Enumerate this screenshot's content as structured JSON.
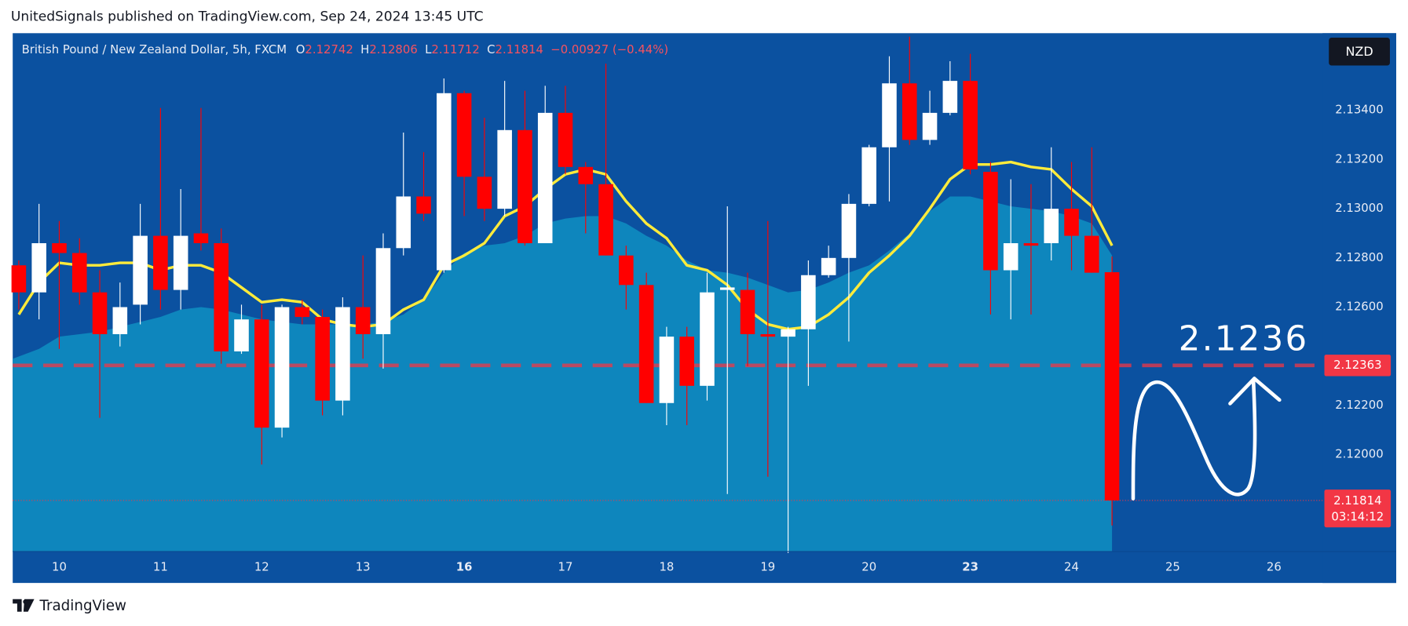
{
  "header": "UnitedSignals published on TradingView.com, Sep 24, 2024 13:45 UTC",
  "footer": "TradingView",
  "chart_data": {
    "type": "candlestick",
    "title": "British Pound / New Zealand Dollar, 5h, FXCM",
    "ohlc_letters": [
      "O",
      "H",
      "L",
      "C"
    ],
    "change": "−0.00927 (−0.44%)",
    "currency": "NZD",
    "up_color": "#ffffff",
    "down_color": "#ff0000",
    "open": [
      2.1277,
      2.1266,
      2.1286,
      2.1282,
      2.1266,
      2.1249,
      2.1261,
      2.1289,
      2.1267,
      2.129,
      2.1286,
      2.1242,
      2.1255,
      2.1211,
      2.126,
      2.1256,
      2.1222,
      2.126,
      2.1249,
      2.1284,
      2.1305,
      2.1275,
      2.1347,
      2.1313,
      2.13,
      2.1332,
      2.1286,
      2.1339,
      2.1317,
      2.131,
      2.1281,
      2.1269,
      2.1221,
      2.1248,
      2.1228,
      2.1267,
      2.1267,
      2.1249,
      2.1248,
      2.1251,
      2.1273,
      2.128,
      2.1302,
      2.1325,
      2.1351,
      2.1328,
      2.1339,
      2.1352,
      2.1315,
      2.1275,
      2.1286,
      2.1286,
      2.13,
      2.1289,
      2.12742
    ],
    "high": [
      2.1279,
      2.1302,
      2.1295,
      2.1288,
      2.1275,
      2.127,
      2.1302,
      2.1341,
      2.1308,
      2.1341,
      2.1292,
      2.1261,
      2.1261,
      2.1261,
      2.1263,
      2.1259,
      2.1264,
      2.1281,
      2.129,
      2.1331,
      2.1323,
      2.1353,
      2.1348,
      2.1337,
      2.1352,
      2.1348,
      2.135,
      2.135,
      2.1319,
      2.1359,
      2.1285,
      2.1274,
      2.1252,
      2.1252,
      2.1274,
      2.1301,
      2.1274,
      2.1295,
      2.1252,
      2.1279,
      2.1285,
      2.1306,
      2.1326,
      2.1362,
      2.137,
      2.1348,
      2.136,
      2.1363,
      2.1319,
      2.1312,
      2.131,
      2.1325,
      2.1319,
      2.1325,
      2.12806
    ],
    "low": [
      2.1259,
      2.1255,
      2.1243,
      2.1261,
      2.1215,
      2.1244,
      2.1253,
      2.1259,
      2.1259,
      2.1283,
      2.1237,
      2.1241,
      2.1196,
      2.1207,
      2.1253,
      2.1216,
      2.1216,
      2.1239,
      2.1235,
      2.1281,
      2.1295,
      2.1274,
      2.1297,
      2.1295,
      2.1297,
      2.1285,
      2.1286,
      2.1314,
      2.129,
      2.1281,
      2.1259,
      2.1221,
      2.1212,
      2.1212,
      2.1222,
      2.1184,
      2.1236,
      2.1191,
      2.116,
      2.1228,
      2.1272,
      2.1246,
      2.1301,
      2.1303,
      2.1326,
      2.1326,
      2.1338,
      2.1314,
      2.1257,
      2.1255,
      2.1257,
      2.1279,
      2.1275,
      2.1274,
      2.11712
    ],
    "close": [
      2.1266,
      2.1286,
      2.1282,
      2.1266,
      2.1249,
      2.126,
      2.1289,
      2.1267,
      2.1289,
      2.1286,
      2.1242,
      2.1255,
      2.1211,
      2.126,
      2.1256,
      2.1222,
      2.126,
      2.1249,
      2.1284,
      2.1305,
      2.1298,
      2.1347,
      2.1313,
      2.13,
      2.1332,
      2.1286,
      2.1339,
      2.1317,
      2.131,
      2.1281,
      2.1269,
      2.1221,
      2.1248,
      2.1228,
      2.1266,
      2.1268,
      2.1249,
      2.1248,
      2.1251,
      2.1273,
      2.128,
      2.1302,
      2.1325,
      2.1351,
      2.1328,
      2.1339,
      2.1352,
      2.1316,
      2.1275,
      2.1286,
      2.1285,
      2.13,
      2.1289,
      2.1274,
      2.11814
    ],
    "ma": {
      "color": "#ffeb3b",
      "values": [
        2.1257,
        2.127,
        2.1278,
        2.1277,
        2.1277,
        2.1278,
        2.1278,
        2.1275,
        2.1277,
        2.1277,
        2.1274,
        2.1268,
        2.1262,
        2.1263,
        2.1262,
        2.1255,
        2.1253,
        2.1252,
        2.1253,
        2.1259,
        2.1263,
        2.1277,
        2.1281,
        2.1286,
        2.1297,
        2.1301,
        2.1308,
        2.1314,
        2.1316,
        2.1314,
        2.1303,
        2.1294,
        2.1288,
        2.1277,
        2.1275,
        2.1269,
        2.1259,
        2.1253,
        2.1251,
        2.1252,
        2.1257,
        2.1264,
        2.1274,
        2.1281,
        2.1289,
        2.13,
        2.1312,
        2.1318,
        2.1318,
        2.1319,
        2.1317,
        2.1316,
        2.1308,
        2.1301,
        2.1285
      ]
    },
    "band": {
      "color": "#0e86bd",
      "values": [
        2.1239,
        2.1243,
        2.1248,
        2.1249,
        2.125,
        2.1252,
        2.1254,
        2.1256,
        2.1259,
        2.126,
        2.1259,
        2.1257,
        2.1255,
        2.1254,
        2.1253,
        2.1253,
        2.1253,
        2.1253,
        2.1254,
        2.1257,
        2.1263,
        2.1274,
        2.1282,
        2.1285,
        2.1286,
        2.1289,
        2.1294,
        2.1296,
        2.1297,
        2.1297,
        2.1294,
        2.1289,
        2.1285,
        2.1279,
        2.1275,
        2.1274,
        2.1272,
        2.1269,
        2.1266,
        2.1267,
        2.127,
        2.1274,
        2.1277,
        2.1283,
        2.129,
        2.1299,
        2.1305,
        2.1305,
        2.1303,
        2.1301,
        2.13,
        2.1299,
        2.1297,
        2.1294,
        2.1281
      ]
    },
    "ylim": [
      2.11606,
      2.13714
    ],
    "yticks": [
      {
        "value": 2.134,
        "label": "2.13400"
      },
      {
        "value": 2.132,
        "label": "2.13200"
      },
      {
        "value": 2.13,
        "label": "2.13000"
      },
      {
        "value": 2.128,
        "label": "2.12800"
      },
      {
        "value": 2.126,
        "label": "2.12600"
      },
      {
        "value": 2.122,
        "label": "2.12200"
      },
      {
        "value": 2.12,
        "label": "2.12000"
      }
    ],
    "xlim": [
      -0.3,
      64.4
    ],
    "xticks": [
      {
        "value": 2,
        "label": "10"
      },
      {
        "value": 7,
        "label": "11"
      },
      {
        "value": 12,
        "label": "12"
      },
      {
        "value": 17,
        "label": "13"
      },
      {
        "value": 22,
        "label": "16",
        "bold": true
      },
      {
        "value": 27,
        "label": "17"
      },
      {
        "value": 32,
        "label": "18"
      },
      {
        "value": 37,
        "label": "19"
      },
      {
        "value": 42,
        "label": "20"
      },
      {
        "value": 47,
        "label": "23",
        "bold": true
      },
      {
        "value": 52,
        "label": "24"
      },
      {
        "value": 57,
        "label": "25"
      },
      {
        "value": 62,
        "label": "26"
      }
    ],
    "level": {
      "value": 2.12363,
      "color": "#f23645"
    },
    "annotation": "2.1236",
    "countdown": "03:14:12"
  }
}
